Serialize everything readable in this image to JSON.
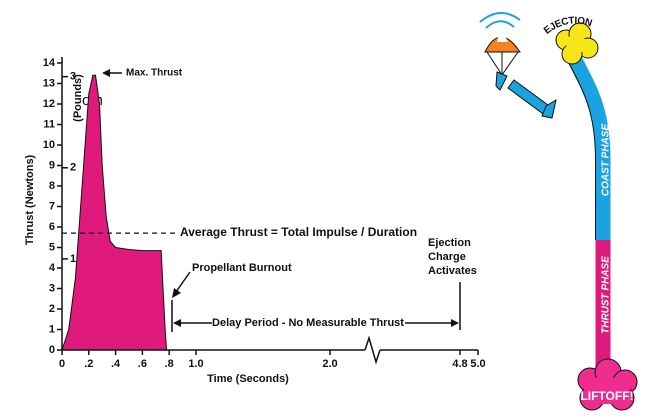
{
  "chart_data": {
    "type": "area",
    "x": [
      0,
      0.05,
      0.1,
      0.15,
      0.2,
      0.23,
      0.25,
      0.28,
      0.3,
      0.33,
      0.36,
      0.4,
      0.5,
      0.6,
      0.74,
      0.75,
      0.77,
      0.78
    ],
    "values": [
      0,
      1,
      3.5,
      8,
      12.5,
      13.4,
      13.4,
      12,
      9,
      6.5,
      5.3,
      5,
      4.9,
      4.85,
      4.85,
      3.5,
      1,
      0
    ],
    "color": "#e0197d",
    "xlabel": "Time (Seconds)",
    "ylabel": "Thrust (Newtons)",
    "y2label": "(Pounds)",
    "xlim": [
      0,
      5
    ],
    "xticks": [
      0,
      {
        "value": 0.2,
        "label": ".2"
      },
      {
        "value": 0.4,
        "label": ".4"
      },
      {
        "value": 0.6,
        "label": ".6"
      },
      {
        "value": 0.8,
        "label": ".8"
      },
      {
        "value": 1,
        "label": "1.0"
      },
      {
        "value": 2,
        "label": "2.0"
      },
      4.8,
      {
        "value": 5,
        "label": "5.0"
      }
    ],
    "ylim": [
      0,
      14
    ],
    "yticks": [
      0,
      1,
      2,
      3,
      4,
      5,
      6,
      7,
      8,
      9,
      10,
      11,
      12,
      13,
      14
    ],
    "y2lim": [
      0,
      3.15
    ],
    "y2ticks": [
      1,
      2,
      3
    ],
    "average_thrust": 5.7,
    "annotations": {
      "max_thrust": "Max. Thrust",
      "average": "Average Thrust = Total Impulse / Duration",
      "burnout": "Propellant Burnout",
      "ejection": [
        "Ejection",
        "Charge",
        "Activates"
      ],
      "delay": "Delay Period - No Measurable Thrust"
    }
  },
  "illustration": {
    "ejection": "EJECTION",
    "coast": "COAST PHASE",
    "thrust": "THRUST PHASE",
    "liftoff": "LIFTOFF!"
  },
  "fragment": "om"
}
